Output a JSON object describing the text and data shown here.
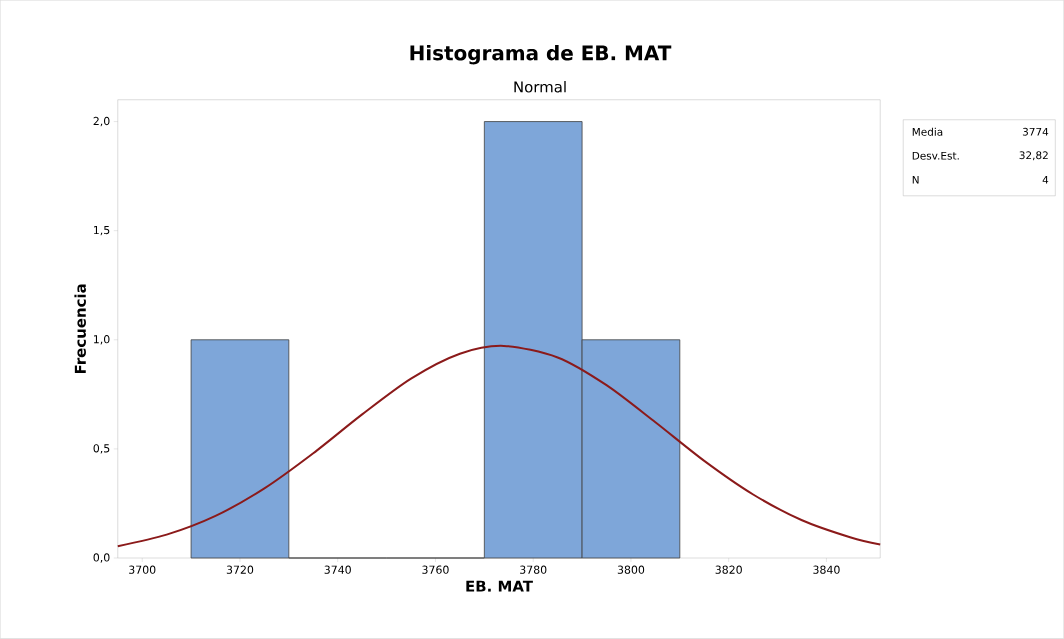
{
  "chart_data": {
    "type": "histogram",
    "title": "Histograma de EB. MAT",
    "subtitle": "Normal",
    "xlabel": "EB. MAT",
    "ylabel": "Frecuencia",
    "bins": [
      3710,
      3730,
      3750,
      3770,
      3790,
      3810
    ],
    "values": [
      1,
      0,
      0,
      2,
      1
    ],
    "color": "#7ea6d9",
    "series": [
      {
        "type": "line",
        "color": "#8b1a1a",
        "x": [
          3695,
          3705,
          3715,
          3725,
          3735,
          3745,
          3755,
          3765,
          3774,
          3785,
          3795,
          3805,
          3815,
          3825,
          3835,
          3845,
          3851
        ],
        "values": [
          0.054,
          0.107,
          0.193,
          0.319,
          0.48,
          0.658,
          0.822,
          0.936,
          0.972,
          0.919,
          0.792,
          0.622,
          0.445,
          0.291,
          0.173,
          0.094,
          0.062
        ]
      }
    ],
    "xlim": [
      3695,
      3851
    ],
    "ylim": [
      0,
      2.1
    ],
    "xticks": [
      3700,
      3720,
      3740,
      3760,
      3780,
      3800,
      3820,
      3840
    ],
    "yticks": [
      {
        "value": 0,
        "label": "0,0"
      },
      {
        "value": 0.5,
        "label": "0,5"
      },
      {
        "value": 1,
        "label": "1,0"
      },
      {
        "value": 1.5,
        "label": "1,5"
      },
      {
        "value": 2,
        "label": "2,0"
      }
    ],
    "annotations": [
      "Media",
      "3774",
      "Desv.Est.",
      "32,82",
      "N",
      "4"
    ]
  }
}
